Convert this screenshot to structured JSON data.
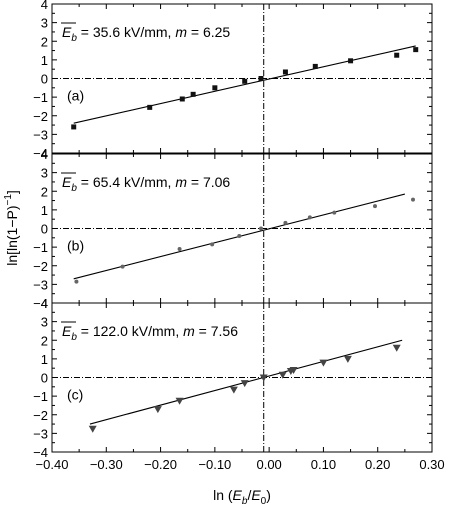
{
  "chart_data": {
    "type": "scatter",
    "xlabel": "ln (E_b/E_0)",
    "ylabel": "ln[ln(1−P)^−1]",
    "xlim": [
      -0.4,
      0.3
    ],
    "ylim": [
      -4,
      4
    ],
    "x_ticks": [
      "−0.40",
      "−0.30",
      "−0.20",
      "−0.10",
      "0.00",
      "0.10",
      "0.20",
      "0.30"
    ],
    "y_ticks": [
      "−4",
      "−3",
      "−2",
      "−1",
      "0",
      "1",
      "2",
      "3",
      "4"
    ],
    "grid": false,
    "reference_lines": {
      "x": -0.01,
      "y": 0
    },
    "panels": [
      {
        "label": "(a)",
        "annotation": {
          "eb_symbol": "E",
          "eb_sub": "b",
          "eb_text": " = 35.6 kV/mm, ",
          "m_symbol": "m",
          "m_text": " = 6.25"
        },
        "marker": "square",
        "fit": {
          "x": [
            -0.36,
            0.27
          ],
          "y": [
            -2.4,
            1.75
          ]
        },
        "points": [
          {
            "x": -0.36,
            "y": -2.6
          },
          {
            "x": -0.22,
            "y": -1.55
          },
          {
            "x": -0.16,
            "y": -1.1
          },
          {
            "x": -0.14,
            "y": -0.85
          },
          {
            "x": -0.1,
            "y": -0.5
          },
          {
            "x": -0.045,
            "y": -0.15
          },
          {
            "x": -0.015,
            "y": 0.0
          },
          {
            "x": 0.03,
            "y": 0.35
          },
          {
            "x": 0.085,
            "y": 0.65
          },
          {
            "x": 0.15,
            "y": 0.95
          },
          {
            "x": 0.235,
            "y": 1.25
          },
          {
            "x": 0.27,
            "y": 1.55
          }
        ]
      },
      {
        "label": "(b)",
        "annotation": {
          "eb_symbol": "E",
          "eb_sub": "b",
          "eb_text": " = 65.4 kV/mm, ",
          "m_symbol": "m",
          "m_text": " = 7.06"
        },
        "marker": "circle",
        "fit": {
          "x": [
            -0.36,
            0.25
          ],
          "y": [
            -2.7,
            1.85
          ]
        },
        "points": [
          {
            "x": -0.355,
            "y": -2.85
          },
          {
            "x": -0.27,
            "y": -2.05
          },
          {
            "x": -0.165,
            "y": -1.1
          },
          {
            "x": -0.105,
            "y": -0.85
          },
          {
            "x": -0.055,
            "y": -0.4
          },
          {
            "x": -0.015,
            "y": 0.0
          },
          {
            "x": 0.03,
            "y": 0.3
          },
          {
            "x": 0.075,
            "y": 0.6
          },
          {
            "x": 0.12,
            "y": 0.85
          },
          {
            "x": 0.195,
            "y": 1.2
          },
          {
            "x": 0.265,
            "y": 1.55
          }
        ]
      },
      {
        "label": "(c)",
        "annotation": {
          "eb_symbol": "E",
          "eb_sub": "b",
          "eb_text": " = 122.0 kV/mm, ",
          "m_symbol": "m",
          "m_text": " = 7.56"
        },
        "marker": "triangle-down",
        "fit": {
          "x": [
            -0.33,
            0.245
          ],
          "y": [
            -2.5,
            2.0
          ]
        },
        "points": [
          {
            "x": -0.325,
            "y": -2.75
          },
          {
            "x": -0.205,
            "y": -1.7
          },
          {
            "x": -0.165,
            "y": -1.25
          },
          {
            "x": -0.065,
            "y": -0.65
          },
          {
            "x": -0.045,
            "y": -0.3
          },
          {
            "x": -0.01,
            "y": 0.0
          },
          {
            "x": 0.025,
            "y": 0.15
          },
          {
            "x": 0.04,
            "y": 0.35
          },
          {
            "x": 0.045,
            "y": 0.4
          },
          {
            "x": 0.1,
            "y": 0.8
          },
          {
            "x": 0.145,
            "y": 1.0
          },
          {
            "x": 0.235,
            "y": 1.6
          }
        ]
      }
    ]
  }
}
